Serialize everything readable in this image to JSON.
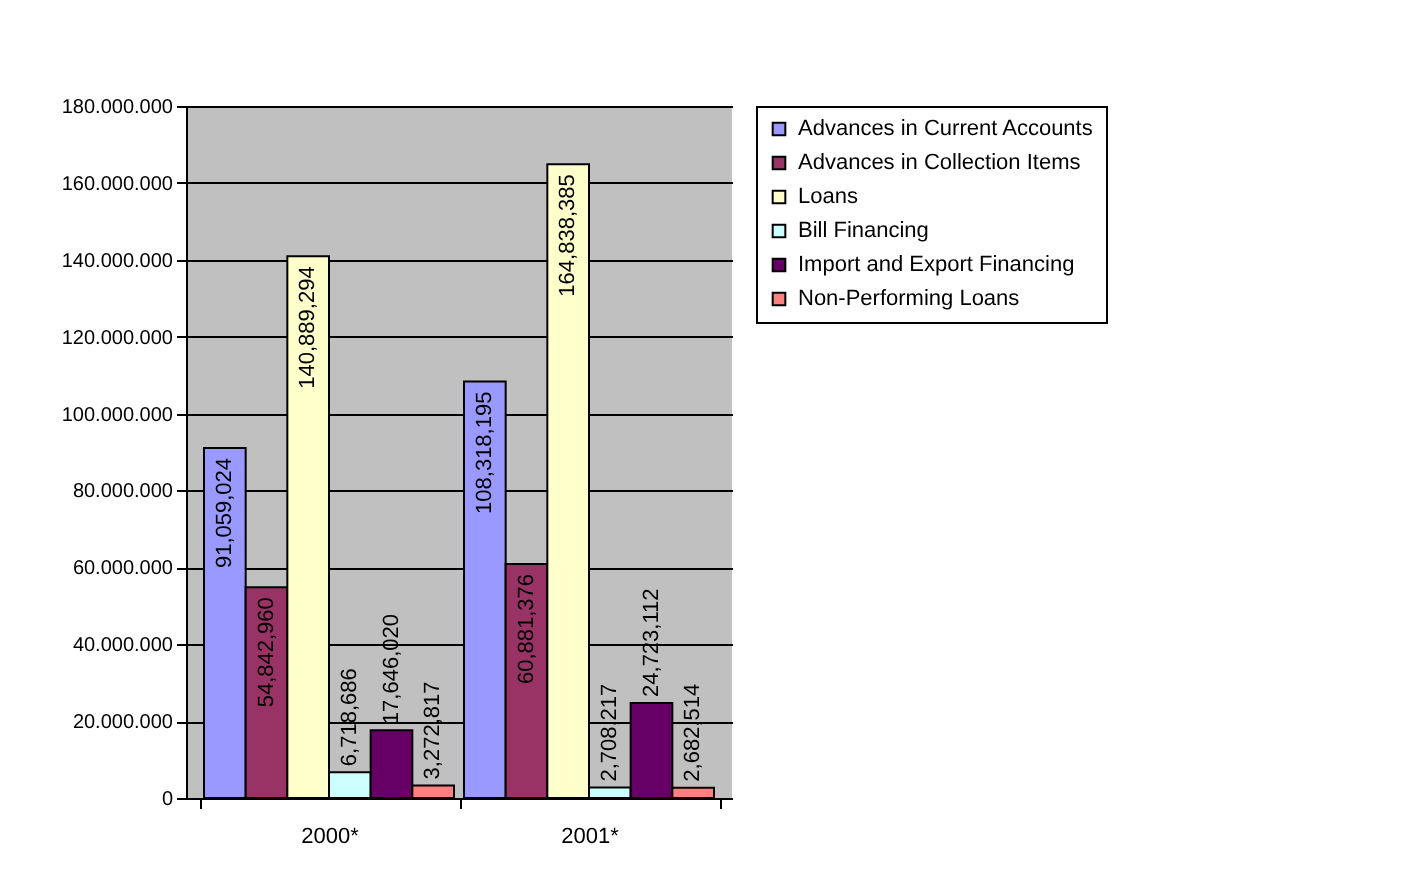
{
  "chart_data": {
    "type": "bar",
    "categories": [
      "2000*",
      "2001*"
    ],
    "series": [
      {
        "name": "Advances in Current Accounts",
        "color": "#9999ff",
        "values": [
          91059024,
          108318195
        ],
        "value_labels": [
          "91,059,024",
          "108,318,195"
        ]
      },
      {
        "name": "Advances in Collection Items",
        "color": "#993366",
        "values": [
          54842960,
          60881376
        ],
        "value_labels": [
          "54,842,960",
          "60,881,376"
        ]
      },
      {
        "name": "Loans",
        "color": "#ffffcc",
        "values": [
          140889294,
          164838385
        ],
        "value_labels": [
          "140,889,294",
          "164,838,385"
        ]
      },
      {
        "name": "Bill Financing",
        "color": "#ccffff",
        "values": [
          6718686,
          2708217
        ],
        "value_labels": [
          "6,718,686",
          "2,708,217"
        ]
      },
      {
        "name": "Import and Export Financing",
        "color": "#660066",
        "values": [
          17646020,
          24723112
        ],
        "value_labels": [
          "17,646,020",
          "24,723,112"
        ]
      },
      {
        "name": "Non-Performing Loans",
        "color": "#ff8080",
        "values": [
          3272817,
          2682514
        ],
        "value_labels": [
          "3,272,817",
          "2,682,514"
        ]
      }
    ],
    "ylim": [
      0,
      180000000
    ],
    "yticks": [
      {
        "value": 0,
        "label": "0"
      },
      {
        "value": 20000000,
        "label": "20.000.000"
      },
      {
        "value": 40000000,
        "label": "40.000.000"
      },
      {
        "value": 60000000,
        "label": "60.000.000"
      },
      {
        "value": 80000000,
        "label": "80.000.000"
      },
      {
        "value": 100000000,
        "label": "100.000.000"
      },
      {
        "value": 120000000,
        "label": "120.000.000"
      },
      {
        "value": 140000000,
        "label": "140.000.000"
      },
      {
        "value": 160000000,
        "label": "160.000.000"
      },
      {
        "value": 180000000,
        "label": "180.000.000"
      }
    ],
    "grid": "y",
    "legend": "right"
  }
}
